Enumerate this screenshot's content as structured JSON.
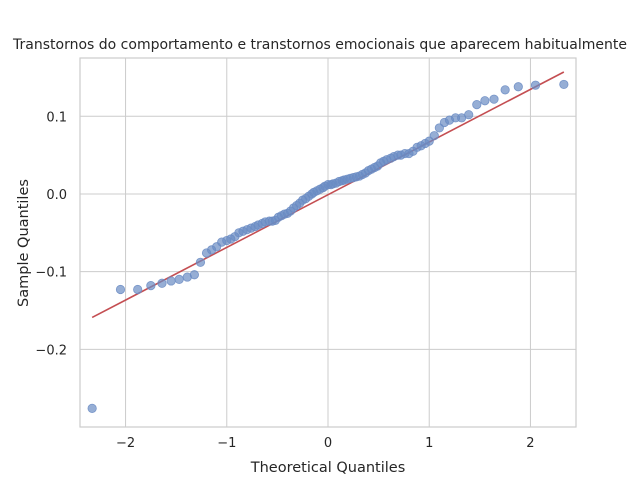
{
  "chart_data": {
    "type": "scatter",
    "title": "Transtornos do comportamento e transtornos emocionais que aparecem habitualmente",
    "xlabel": "Theoretical Quantiles",
    "ylabel": "Sample Quantiles",
    "xlim": [
      -2.45,
      2.45
    ],
    "ylim": [
      -0.3,
      0.175
    ],
    "xticks": [
      -2,
      -1,
      0,
      1,
      2
    ],
    "xtick_labels": [
      "−2",
      "−1",
      "0",
      "1",
      "2"
    ],
    "yticks": [
      -0.2,
      -0.1,
      0.0,
      0.1
    ],
    "ytick_labels": [
      "−0.2",
      "−0.1",
      "0.0",
      "0.1"
    ],
    "grid": true,
    "marker_color": "#6a8bc3",
    "line_color": "#c44e52",
    "reference_line": {
      "x": [
        -2.33,
        2.33
      ],
      "y": [
        -0.159,
        0.157
      ]
    },
    "points": {
      "x": [
        -2.33,
        -2.05,
        -1.88,
        -1.75,
        -1.64,
        -1.55,
        -1.47,
        -1.39,
        -1.32,
        -1.26,
        -1.2,
        -1.15,
        -1.1,
        -1.05,
        -1.0,
        -0.96,
        -0.92,
        -0.88,
        -0.84,
        -0.8,
        -0.76,
        -0.72,
        -0.69,
        -0.65,
        -0.62,
        -0.58,
        -0.55,
        -0.52,
        -0.49,
        -0.46,
        -0.43,
        -0.4,
        -0.37,
        -0.34,
        -0.31,
        -0.28,
        -0.25,
        -0.22,
        -0.19,
        -0.16,
        -0.14,
        -0.11,
        -0.08,
        -0.05,
        -0.03,
        0.0,
        0.03,
        0.05,
        0.08,
        0.11,
        0.14,
        0.16,
        0.19,
        0.22,
        0.25,
        0.28,
        0.31,
        0.34,
        0.37,
        0.4,
        0.43,
        0.46,
        0.49,
        0.52,
        0.55,
        0.58,
        0.62,
        0.65,
        0.69,
        0.72,
        0.76,
        0.8,
        0.84,
        0.88,
        0.92,
        0.96,
        1.0,
        1.05,
        1.1,
        1.15,
        1.2,
        1.26,
        1.32,
        1.39,
        1.47,
        1.55,
        1.64,
        1.75,
        1.88,
        2.05,
        2.33
      ],
      "y": [
        -0.276,
        -0.123,
        -0.123,
        -0.118,
        -0.115,
        -0.112,
        -0.11,
        -0.107,
        -0.104,
        -0.088,
        -0.076,
        -0.072,
        -0.068,
        -0.062,
        -0.06,
        -0.058,
        -0.055,
        -0.05,
        -0.048,
        -0.046,
        -0.044,
        -0.042,
        -0.04,
        -0.038,
        -0.036,
        -0.035,
        -0.035,
        -0.034,
        -0.03,
        -0.028,
        -0.026,
        -0.025,
        -0.022,
        -0.018,
        -0.015,
        -0.012,
        -0.008,
        -0.006,
        -0.003,
        0.0,
        0.002,
        0.004,
        0.006,
        0.008,
        0.01,
        0.012,
        0.012,
        0.013,
        0.014,
        0.016,
        0.017,
        0.018,
        0.019,
        0.02,
        0.021,
        0.022,
        0.023,
        0.025,
        0.027,
        0.03,
        0.032,
        0.034,
        0.036,
        0.04,
        0.042,
        0.044,
        0.046,
        0.048,
        0.05,
        0.05,
        0.052,
        0.052,
        0.055,
        0.06,
        0.062,
        0.065,
        0.068,
        0.075,
        0.085,
        0.092,
        0.095,
        0.098,
        0.098,
        0.102,
        0.115,
        0.12,
        0.122,
        0.134,
        0.138,
        0.14,
        0.141
      ]
    }
  }
}
